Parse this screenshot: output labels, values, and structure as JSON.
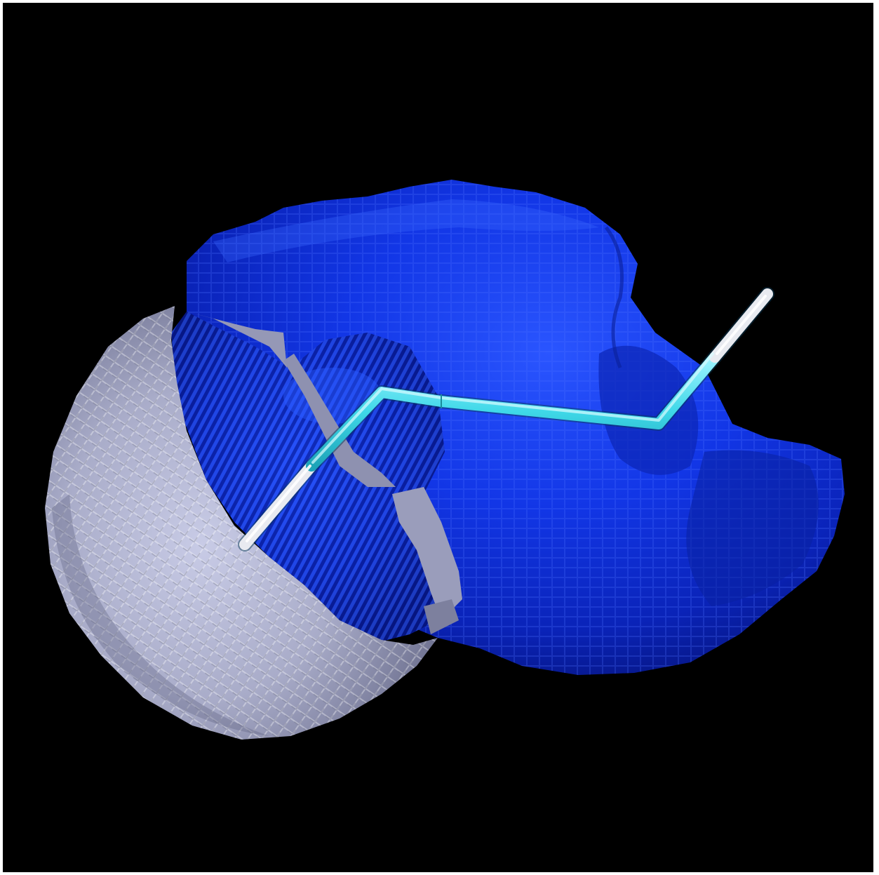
{
  "scene": {
    "background_color": "#000000",
    "frame_color": "#ffffff",
    "objects": [
      {
        "name": "blue-molecular-surface",
        "color": "#1033e0",
        "style": "voxelized isosurface"
      },
      {
        "name": "gray-clipped-surface",
        "color": "#b4b8d4",
        "style": "voxelized isosurface, cut open"
      },
      {
        "name": "ligand-chain",
        "color": "#3fd8e8",
        "end_color": "#e8eaf0",
        "style": "stick model"
      }
    ]
  }
}
